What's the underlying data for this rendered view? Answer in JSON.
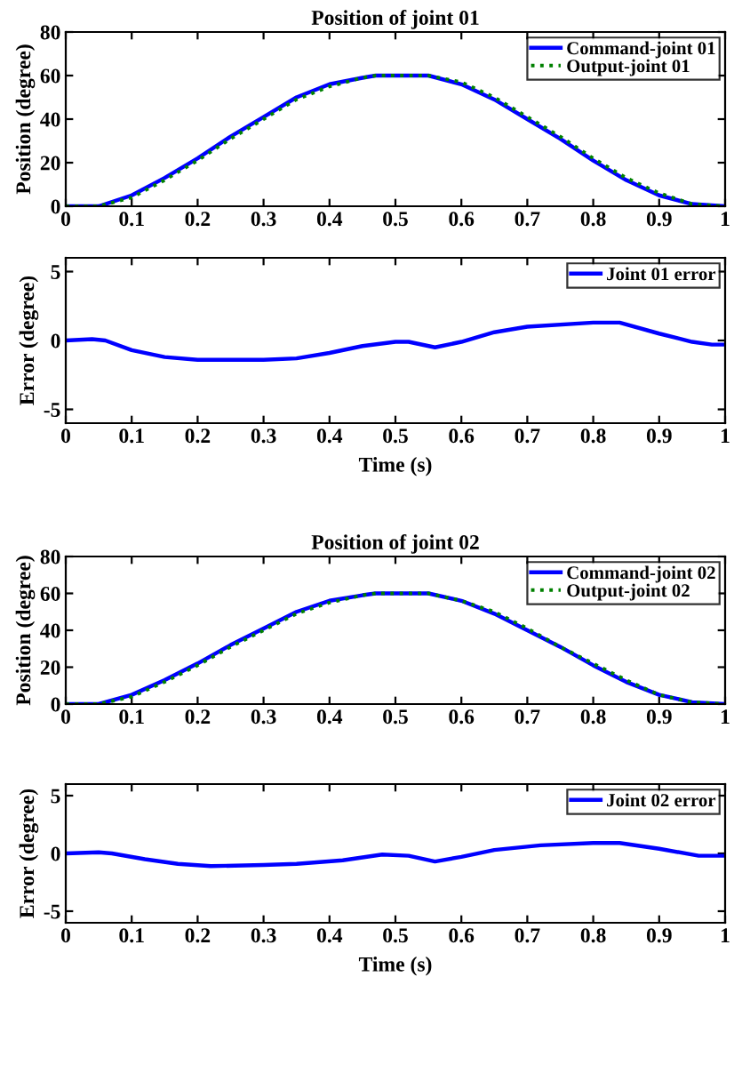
{
  "chart_data": [
    {
      "type": "line",
      "title": "Position of joint 01",
      "ylabel": "Position (degree)",
      "xlim": [
        0,
        1
      ],
      "ylim": [
        0,
        80
      ],
      "xticks": [
        0,
        0.1,
        0.2,
        0.3,
        0.4,
        0.5,
        0.6,
        0.7,
        0.8,
        0.9,
        1
      ],
      "yticks": [
        0,
        20,
        40,
        60,
        80
      ],
      "grid": false,
      "legend": "top right",
      "x": [
        0,
        0.05,
        0.1,
        0.15,
        0.2,
        0.25,
        0.3,
        0.35,
        0.4,
        0.45,
        0.47,
        0.5,
        0.54,
        0.55,
        0.6,
        0.65,
        0.7,
        0.75,
        0.8,
        0.85,
        0.9,
        0.95,
        1
      ],
      "series": [
        {
          "name": "Command-joint 01",
          "color": "#0000ff",
          "line_style": "solid",
          "values": [
            0,
            0,
            5,
            13,
            22,
            32,
            41,
            50,
            56,
            59,
            60,
            60,
            60,
            60,
            56,
            49,
            40,
            31,
            21,
            12,
            5,
            1,
            0
          ]
        },
        {
          "name": "Output-joint 01",
          "color": "#008000",
          "line_style": "dotted",
          "values": [
            0,
            0,
            4,
            12,
            21,
            31,
            40,
            49,
            55,
            59,
            60,
            60,
            60,
            60,
            57,
            50,
            41,
            32,
            22,
            13,
            6,
            1,
            0
          ]
        }
      ]
    },
    {
      "type": "line",
      "ylabel": "Error (degree)",
      "xlabel": "Time (s)",
      "xlim": [
        0,
        1
      ],
      "ylim": [
        -6,
        6
      ],
      "xticks": [
        0,
        0.1,
        0.2,
        0.3,
        0.4,
        0.5,
        0.6,
        0.7,
        0.8,
        0.9,
        1
      ],
      "yticks": [
        -5,
        0,
        5
      ],
      "grid": false,
      "legend": "top right",
      "x": [
        0,
        0.04,
        0.06,
        0.1,
        0.15,
        0.2,
        0.3,
        0.35,
        0.4,
        0.45,
        0.5,
        0.52,
        0.56,
        0.6,
        0.65,
        0.7,
        0.8,
        0.84,
        0.9,
        0.95,
        0.98,
        1
      ],
      "series": [
        {
          "name": "Joint 01 error",
          "color": "#0000ff",
          "line_style": "solid",
          "values": [
            0,
            0.1,
            0,
            -0.7,
            -1.2,
            -1.4,
            -1.4,
            -1.3,
            -0.9,
            -0.4,
            -0.1,
            -0.1,
            -0.5,
            -0.1,
            0.6,
            1.0,
            1.3,
            1.3,
            0.5,
            -0.1,
            -0.3,
            -0.3
          ]
        }
      ]
    },
    {
      "type": "line",
      "title": "Position of joint 02",
      "ylabel": "Position (degree)",
      "xlim": [
        0,
        1
      ],
      "ylim": [
        0,
        80
      ],
      "xticks": [
        0,
        0.1,
        0.2,
        0.3,
        0.4,
        0.5,
        0.6,
        0.7,
        0.8,
        0.9,
        1
      ],
      "yticks": [
        0,
        20,
        40,
        60,
        80
      ],
      "grid": false,
      "legend": "top right",
      "x": [
        0,
        0.05,
        0.1,
        0.15,
        0.2,
        0.25,
        0.3,
        0.35,
        0.4,
        0.45,
        0.47,
        0.5,
        0.54,
        0.55,
        0.6,
        0.65,
        0.7,
        0.75,
        0.8,
        0.85,
        0.9,
        0.95,
        1
      ],
      "series": [
        {
          "name": "Command-joint 02",
          "color": "#0000ff",
          "line_style": "solid",
          "values": [
            0,
            0,
            5,
            13,
            22,
            32,
            41,
            50,
            56,
            59,
            60,
            60,
            60,
            60,
            56,
            49,
            40,
            31,
            21,
            12,
            5,
            1,
            0
          ]
        },
        {
          "name": "Output-joint 02",
          "color": "#008000",
          "line_style": "dotted",
          "values": [
            0,
            0,
            4,
            12,
            21,
            31,
            40,
            49,
            55,
            59,
            60,
            60,
            60,
            60,
            56,
            50,
            41,
            31,
            22,
            13,
            5,
            1,
            0
          ]
        }
      ]
    },
    {
      "type": "line",
      "ylabel": "Error (degree)",
      "xlabel": "Time (s)",
      "xlim": [
        0,
        1
      ],
      "ylim": [
        -6,
        6
      ],
      "xticks": [
        0,
        0.1,
        0.2,
        0.3,
        0.4,
        0.5,
        0.6,
        0.7,
        0.8,
        0.9,
        1
      ],
      "yticks": [
        -5,
        0,
        5
      ],
      "grid": false,
      "legend": "top right",
      "x": [
        0,
        0.05,
        0.07,
        0.12,
        0.17,
        0.22,
        0.3,
        0.35,
        0.42,
        0.48,
        0.52,
        0.56,
        0.6,
        0.65,
        0.72,
        0.8,
        0.84,
        0.9,
        0.96,
        1
      ],
      "series": [
        {
          "name": "Joint 02 error",
          "color": "#0000ff",
          "line_style": "solid",
          "values": [
            0,
            0.1,
            0,
            -0.5,
            -0.9,
            -1.1,
            -1.0,
            -0.9,
            -0.6,
            -0.1,
            -0.2,
            -0.7,
            -0.3,
            0.3,
            0.7,
            0.9,
            0.9,
            0.4,
            -0.2,
            -0.2
          ]
        }
      ]
    }
  ]
}
